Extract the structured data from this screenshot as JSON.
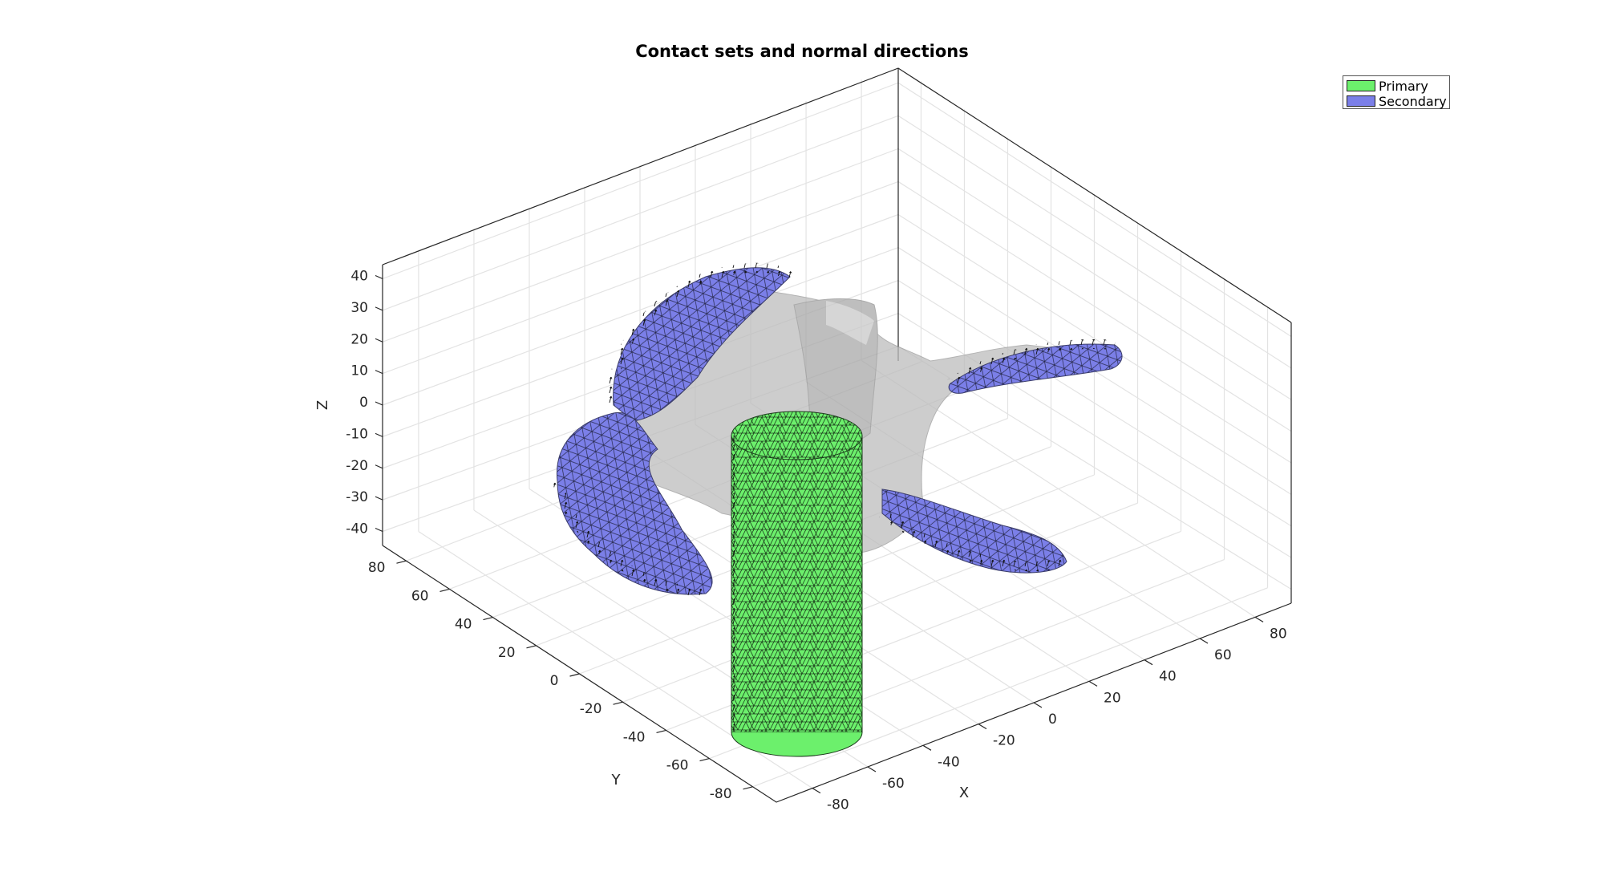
{
  "title": "Contact sets and normal directions",
  "axes": {
    "xlabel": "X",
    "ylabel": "Y",
    "zlabel": "Z",
    "xticks": [
      "-80",
      "-60",
      "-40",
      "-20",
      "0",
      "20",
      "40",
      "60",
      "80"
    ],
    "yticks": [
      "80",
      "60",
      "40",
      "20",
      "0",
      "-20",
      "-40",
      "-60",
      "-80"
    ],
    "zticks": [
      "40",
      "30",
      "20",
      "10",
      "0",
      "-10",
      "-20",
      "-30",
      "-40"
    ],
    "grid": true
  },
  "legend": {
    "placement": "top-right",
    "items": [
      {
        "label": "Primary",
        "color": "#6cf06c"
      },
      {
        "label": "Secondary",
        "color": "#7b7fe8"
      }
    ]
  },
  "colors": {
    "primary": "#6cf06c",
    "secondary": "#7b7fe8",
    "body": "#c8c8c8",
    "grid": "#e3e3e3",
    "axis": "#262626"
  }
}
